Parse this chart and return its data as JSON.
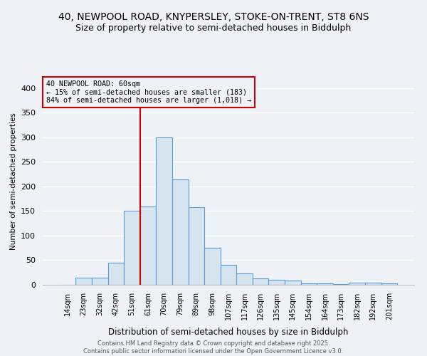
{
  "title_line1": "40, NEWPOOL ROAD, KNYPERSLEY, STOKE-ON-TRENT, ST8 6NS",
  "title_line2": "Size of property relative to semi-detached houses in Biddulph",
  "xlabel": "Distribution of semi-detached houses by size in Biddulph",
  "ylabel": "Number of semi-detached properties",
  "categories": [
    "14sqm",
    "23sqm",
    "32sqm",
    "42sqm",
    "51sqm",
    "61sqm",
    "70sqm",
    "79sqm",
    "89sqm",
    "98sqm",
    "107sqm",
    "117sqm",
    "126sqm",
    "135sqm",
    "145sqm",
    "154sqm",
    "164sqm",
    "173sqm",
    "182sqm",
    "192sqm",
    "201sqm"
  ],
  "values": [
    0,
    15,
    15,
    45,
    150,
    160,
    300,
    215,
    158,
    75,
    40,
    23,
    13,
    10,
    8,
    3,
    3,
    1,
    4,
    4,
    3
  ],
  "bar_color": "#d6e4f0",
  "bar_edge_color": "#5b9bd5",
  "property_bar_index": 5,
  "annotation_title": "40 NEWPOOL ROAD: 60sqm",
  "annotation_line2": "← 15% of semi-detached houses are smaller (183)",
  "annotation_line3": "84% of semi-detached houses are larger (1,018) →",
  "vline_color": "#cc0000",
  "annotation_box_edge_color": "#cc0000",
  "ylim": [
    0,
    420
  ],
  "footer_line1": "Contains HM Land Registry data © Crown copyright and database right 2025.",
  "footer_line2": "Contains public sector information licensed under the Open Government Licence v3.0.",
  "background_color": "#eef2f7",
  "grid_color": "#ffffff",
  "title_fontsize": 10,
  "subtitle_fontsize": 9
}
